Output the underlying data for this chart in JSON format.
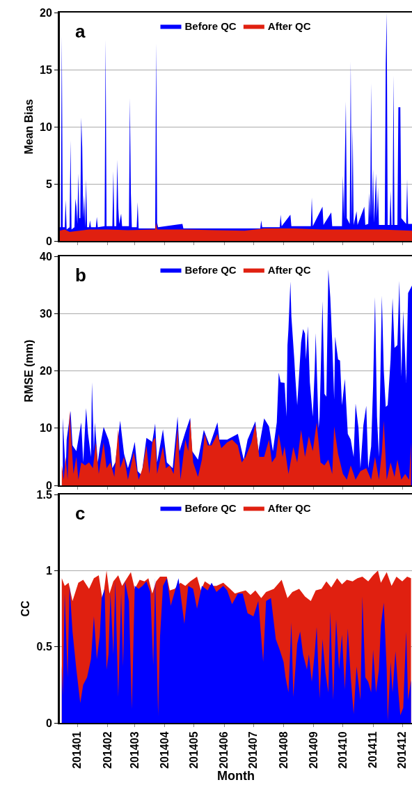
{
  "chart_data": [
    {
      "type": "area",
      "annotations": [
        "a"
      ],
      "ylabel": "Mean Bias",
      "xlim": [
        "2013-12-14",
        "2014-12-11"
      ],
      "ylim": [
        0,
        20
      ],
      "yticks": [
        0,
        5,
        10,
        15,
        20
      ],
      "grid": "y",
      "legend": "top",
      "tick_labels": "y",
      "xticks": [
        {
          "value": "2014-01",
          "label": null
        },
        {
          "value": "2014-02",
          "label": null
        },
        {
          "value": "2014-03",
          "label": null
        },
        {
          "value": "2014-04",
          "label": null
        },
        {
          "value": "2014-05",
          "label": null
        },
        {
          "value": "2014-06",
          "label": null
        },
        {
          "value": "2014-07",
          "label": null
        },
        {
          "value": "2014-08",
          "label": null
        },
        {
          "value": "2014-09",
          "label": null
        },
        {
          "value": "2014-10",
          "label": null
        },
        {
          "value": "2014-11",
          "label": null
        },
        {
          "value": "2014-12",
          "label": null
        }
      ],
      "series": [
        {
          "name": "Before QC",
          "color": "#0000ff",
          "x": [
            "2013-12-14",
            "2013-12-15",
            "2013-12-16",
            "2013-12-17",
            "2013-12-19",
            "2013-12-20",
            "2013-12-21",
            "2013-12-24",
            "2013-12-25",
            "2013-12-26",
            "2013-12-29",
            "2013-12-30",
            "2013-12-31",
            "2014-01-01",
            "2014-01-02",
            "2014-01-03",
            "2014-01-04",
            "2014-01-05",
            "2014-01-06",
            "2014-01-07",
            "2014-01-08",
            "2014-01-09",
            "2014-01-10",
            "2014-01-11",
            "2014-01-13",
            "2014-01-14",
            "2014-01-15",
            "2014-01-20",
            "2014-01-21",
            "2014-01-22",
            "2014-01-29",
            "2014-01-30",
            "2014-01-31",
            "2014-02-06",
            "2014-02-07",
            "2014-02-08",
            "2014-02-10",
            "2014-02-11",
            "2014-02-12",
            "2014-02-13",
            "2014-02-15",
            "2014-02-16",
            "2014-02-23",
            "2014-02-24",
            "2014-02-25",
            "2014-02-26",
            "2014-03-03",
            "2014-03-04",
            "2014-03-05",
            "2014-03-22",
            "2014-03-23",
            "2014-03-24",
            "2014-03-25",
            "2014-04-19",
            "2014-04-20",
            "2014-07-08",
            "2014-07-09",
            "2014-07-10",
            "2014-07-28",
            "2014-07-29",
            "2014-07-30",
            "2014-08-08",
            "2014-08-09",
            "2014-08-29",
            "2014-08-30",
            "2014-08-31",
            "2014-09-10",
            "2014-09-11",
            "2014-09-19",
            "2014-09-20",
            "2014-09-30",
            "2014-10-01",
            "2014-10-02",
            "2014-10-04",
            "2014-10-05",
            "2014-10-08",
            "2014-10-09",
            "2014-10-10",
            "2014-10-11",
            "2014-10-12",
            "2014-10-15",
            "2014-10-16",
            "2014-10-23",
            "2014-10-24",
            "2014-10-27",
            "2014-10-28",
            "2014-10-29",
            "2014-10-30",
            "2014-10-31",
            "2014-11-01",
            "2014-11-02",
            "2014-11-04",
            "2014-11-05",
            "2014-11-06",
            "2014-11-07",
            "2014-11-13",
            "2014-11-14",
            "2014-11-15",
            "2014-11-16",
            "2014-11-18",
            "2014-11-19",
            "2014-11-20",
            "2014-11-21",
            "2014-11-22",
            "2014-11-23",
            "2014-11-26",
            "2014-11-27",
            "2014-11-29",
            "2014-11-30",
            "2014-12-05",
            "2014-12-06",
            "2014-12-07",
            "2014-12-11"
          ],
          "values": [
            1.2,
            1.2,
            17.9,
            1.2,
            1.2,
            3.6,
            1.0,
            1.2,
            8.8,
            1.0,
            1.2,
            3.7,
            3.0,
            1.5,
            5.9,
            2,
            2,
            10.8,
            8.2,
            2,
            4,
            1.2,
            5.4,
            1.2,
            1.2,
            1.8,
            1.2,
            1.2,
            2.1,
            1.2,
            1.3,
            17.6,
            1.3,
            1.3,
            6.1,
            1.3,
            1.3,
            7.1,
            3,
            1.5,
            2.4,
            1.3,
            1.3,
            12.5,
            4.2,
            1.2,
            1.2,
            3.4,
            1.1,
            1.1,
            17.3,
            1.6,
            1.2,
            1.5,
            1.1,
            1.1,
            1.8,
            1.2,
            1.2,
            2.3,
            1.3,
            2.3,
            1.3,
            1.3,
            3.8,
            1.3,
            3,
            1.4,
            2.5,
            1.3,
            1.3,
            5.7,
            2,
            12.2,
            2,
            1.5,
            15.7,
            1.5,
            10,
            1.4,
            2.6,
            1.4,
            3,
            1.4,
            1.5,
            4.2,
            2,
            13.8,
            2,
            6.3,
            1.6,
            5.9,
            2,
            4.7,
            1.4,
            1.4,
            15.5,
            20,
            1.4,
            1.4,
            4.4,
            1.4,
            1.4,
            14.5,
            1.4,
            1.4,
            11.7,
            11.7,
            2,
            1.5,
            5.4,
            1.5,
            1.5
          ]
        },
        {
          "name": "After QC",
          "color": "#e02010",
          "x": [
            "2013-12-14",
            "2013-12-19",
            "2013-12-24",
            "2014-01-03",
            "2014-01-13",
            "2014-02-02",
            "2014-02-22",
            "2014-03-22",
            "2014-03-23",
            "2014-03-24",
            "2014-04-23",
            "2014-05-23",
            "2014-06-22",
            "2014-07-12",
            "2014-08-11",
            "2014-09-10",
            "2014-10-10",
            "2014-11-09",
            "2014-12-11"
          ],
          "values": [
            0.9,
            1.0,
            0.8,
            0.9,
            1.0,
            1.0,
            0.95,
            1.0,
            1.6,
            1.0,
            1.0,
            0.95,
            0.9,
            1.1,
            1.1,
            1.0,
            1.0,
            1.0,
            0.9
          ]
        }
      ]
    },
    {
      "type": "area",
      "annotations": [
        "b"
      ],
      "ylabel": "RMSE (mm)",
      "xlim": [
        "2013-12-14",
        "2014-12-11"
      ],
      "ylim": [
        0,
        40
      ],
      "yticks": [
        0,
        10,
        20,
        30,
        40
      ],
      "grid": "y",
      "legend": "top",
      "tick_labels": "y",
      "xticks": [
        {
          "value": "2014-01",
          "label": null
        },
        {
          "value": "2014-02",
          "label": null
        },
        {
          "value": "2014-03",
          "label": null
        },
        {
          "value": "2014-04",
          "label": null
        },
        {
          "value": "2014-05",
          "label": null
        },
        {
          "value": "2014-06",
          "label": null
        },
        {
          "value": "2014-07",
          "label": null
        },
        {
          "value": "2014-08",
          "label": null
        },
        {
          "value": "2014-09",
          "label": null
        },
        {
          "value": "2014-10",
          "label": null
        },
        {
          "value": "2014-11",
          "label": null
        },
        {
          "value": "2014-12",
          "label": null
        }
      ],
      "series": [
        {
          "name": "Before QC",
          "color": "#0000ff",
          "x": [
            "2013-12-17",
            "2013-12-20",
            "2013-12-21",
            "2013-12-23",
            "2013-12-25",
            "2013-12-27",
            "2013-12-29",
            "2013-12-31",
            "2014-01-03",
            "2014-01-05",
            "2014-01-07",
            "2014-01-10",
            "2014-01-12",
            "2014-01-15",
            "2014-01-16",
            "2014-01-18",
            "2014-01-19",
            "2014-01-22",
            "2014-01-24",
            "2014-01-28",
            "2014-01-31",
            "2014-02-02",
            "2014-02-04",
            "2014-02-06",
            "2014-02-09",
            "2014-02-14",
            "2014-02-16",
            "2014-02-18",
            "2014-02-22",
            "2014-02-25",
            "2014-03-01",
            "2014-03-04",
            "2014-03-08",
            "2014-03-13",
            "2014-03-15",
            "2014-03-19",
            "2014-03-22",
            "2014-03-24",
            "2014-03-30",
            "2014-04-01",
            "2014-04-03",
            "2014-04-09",
            "2014-04-14",
            "2014-04-16",
            "2014-04-18",
            "2014-04-22",
            "2014-04-27",
            "2014-04-29",
            "2014-05-05",
            "2014-05-11",
            "2014-05-17",
            "2014-05-25",
            "2014-05-27",
            "2014-06-04",
            "2014-06-15",
            "2014-06-21",
            "2014-06-25",
            "2014-07-03",
            "2014-07-06",
            "2014-07-12",
            "2014-07-17",
            "2014-07-21",
            "2014-07-25",
            "2014-07-27",
            "2014-07-29",
            "2014-08-02",
            "2014-08-04",
            "2014-08-05",
            "2014-08-06",
            "2014-08-08",
            "2014-08-09",
            "2014-08-12",
            "2014-08-13",
            "2014-08-15",
            "2014-08-19",
            "2014-08-21",
            "2014-08-23",
            "2014-08-24",
            "2014-08-26",
            "2014-08-28",
            "2014-08-31",
            "2014-09-02",
            "2014-09-03",
            "2014-09-06",
            "2014-09-07",
            "2014-09-10",
            "2014-09-12",
            "2014-09-14",
            "2014-09-16",
            "2014-09-18",
            "2014-09-20",
            "2014-09-22",
            "2014-09-23",
            "2014-09-26",
            "2014-09-28",
            "2014-09-30",
            "2014-10-03",
            "2014-10-06",
            "2014-10-09",
            "2014-10-12",
            "2014-10-14",
            "2014-10-17",
            "2014-10-19",
            "2014-10-22",
            "2014-10-25",
            "2014-10-27",
            "2014-10-30",
            "2014-11-01",
            "2014-11-03",
            "2014-11-05",
            "2014-11-07",
            "2014-11-10",
            "2014-11-12",
            "2014-11-14",
            "2014-11-16",
            "2014-11-19",
            "2014-11-21",
            "2014-11-23",
            "2014-11-26",
            "2014-11-28",
            "2014-11-30",
            "2014-12-02",
            "2014-12-05",
            "2014-12-07",
            "2014-12-11"
          ],
          "values": [
            11.8,
            2,
            8,
            null,
            13,
            7,
            null,
            6,
            null,
            11,
            4,
            13.5,
            9,
            5,
            18,
            6,
            11,
            4,
            6.5,
            10.2,
            null,
            8,
            6.5,
            3,
            4,
            11.3,
            null,
            5.5,
            3,
            4.7,
            7.6,
            2.5,
            1.8,
            8.3,
            null,
            7.6,
            10.8,
            4,
            9.8,
            null,
            4,
            3,
            12,
            6,
            null,
            9.3,
            11.8,
            6,
            4.5,
            9.7,
            7,
            11,
            8,
            8,
            9,
            4.5,
            8,
            11.2,
            6,
            11.7,
            10.3,
            6,
            11,
            19.7,
            18,
            17.9,
            12,
            24.5,
            27.3,
            35.6,
            29.5,
            22,
            19,
            14,
            25,
            27.3,
            26.5,
            22,
            27.8,
            18,
            12,
            20.3,
            26.6,
            10,
            12,
            32.2,
            16,
            15.5,
            37.7,
            32.8,
            25,
            15,
            26,
            22,
            21.8,
            14,
            18.6,
            9,
            8,
            5,
            14.3,
            10,
            3,
            10.5,
            13.9,
            3,
            6.8,
            17.3,
            32.9,
            12,
            5,
            33.1,
            20,
            13.7,
            14,
            22,
            32.7,
            24,
            24.5,
            35.7,
            19,
            30.5,
            18,
            33.6,
            34.9
          ]
        },
        {
          "name": "After QC",
          "color": "#e02010",
          "x": [
            "2013-12-16",
            "2013-12-18",
            "2013-12-20",
            "2013-12-22",
            "2013-12-24",
            "2013-12-26",
            "2013-12-28",
            "2013-12-31",
            "2014-01-02",
            "2014-01-05",
            "2014-01-09",
            "2014-01-13",
            "2014-01-17",
            "2014-01-20",
            "2014-01-23",
            "2014-01-28",
            "2014-01-31",
            "2014-02-04",
            "2014-02-08",
            "2014-02-12",
            "2014-02-14",
            "2014-02-18",
            "2014-02-22",
            "2014-02-28",
            "2014-03-05",
            "2014-03-09",
            "2014-03-13",
            "2014-03-16",
            "2014-03-19",
            "2014-03-22",
            "2014-03-24",
            "2014-03-30",
            "2014-04-02",
            "2014-04-06",
            "2014-04-10",
            "2014-04-14",
            "2014-04-17",
            "2014-04-22",
            "2014-04-25",
            "2014-04-27",
            "2014-04-30",
            "2014-05-05",
            "2014-05-09",
            "2014-05-12",
            "2014-05-15",
            "2014-05-19",
            "2014-05-25",
            "2014-05-29",
            "2014-06-04",
            "2014-06-09",
            "2014-06-15",
            "2014-06-19",
            "2014-06-23",
            "2014-06-29",
            "2014-07-03",
            "2014-07-07",
            "2014-07-12",
            "2014-07-17",
            "2014-07-20",
            "2014-07-24",
            "2014-07-27",
            "2014-07-31",
            "2014-08-02",
            "2014-08-06",
            "2014-08-11",
            "2014-08-15",
            "2014-08-19",
            "2014-08-23",
            "2014-08-27",
            "2014-08-31",
            "2014-09-04",
            "2014-09-08",
            "2014-09-12",
            "2014-09-16",
            "2014-09-20",
            "2014-09-22",
            "2014-09-26",
            "2014-10-01",
            "2014-10-05",
            "2014-10-09",
            "2014-10-14",
            "2014-10-19",
            "2014-10-25",
            "2014-10-30",
            "2014-11-03",
            "2014-11-07",
            "2014-11-10",
            "2014-11-12",
            "2014-11-15",
            "2014-11-19",
            "2014-11-23",
            "2014-11-26",
            "2014-11-30",
            "2014-12-04",
            "2014-12-08",
            "2014-12-10"
          ],
          "values": [
            3.5,
            1,
            5,
            1,
            13,
            7.5,
            2,
            5,
            1,
            4,
            3.5,
            4,
            3,
            7.5,
            2,
            7.5,
            3,
            4,
            1.5,
            9.8,
            3,
            5,
            1,
            5.8,
            1,
            3,
            7,
            2,
            7.5,
            8.4,
            2,
            6.8,
            3,
            3.5,
            2,
            10,
            1,
            8,
            6,
            11.5,
            4,
            1.5,
            4.5,
            9,
            7,
            7,
            9,
            6.5,
            7.5,
            8,
            7,
            4,
            5,
            7.5,
            10.6,
            5,
            5,
            8,
            4,
            5,
            9,
            5,
            6.8,
            2,
            6.7,
            4,
            9.7,
            5,
            8.6,
            6,
            11,
            4,
            3.5,
            4.5,
            2,
            10.3,
            5.5,
            2,
            1,
            3.5,
            1,
            2.5,
            3,
            1,
            5,
            1,
            5.8,
            11.3,
            1,
            4,
            1.5,
            4.5,
            1,
            2,
            1,
            7.5
          ]
        }
      ]
    },
    {
      "type": "area",
      "annotations": [
        "c"
      ],
      "ylabel": "CC",
      "xlabel": "Month",
      "xlim": [
        "2013-12-14",
        "2014-12-11"
      ],
      "ylim": [
        0,
        1.5
      ],
      "yticks": [
        0,
        0.5,
        1,
        1.5
      ],
      "grid": "y",
      "legend": "top",
      "xticks": [
        {
          "value": "2014-01",
          "label": "201401"
        },
        {
          "value": "2014-02",
          "label": "201402"
        },
        {
          "value": "2014-03",
          "label": "201403"
        },
        {
          "value": "2014-04",
          "label": "201404"
        },
        {
          "value": "2014-05",
          "label": "201405"
        },
        {
          "value": "2014-06",
          "label": "201406"
        },
        {
          "value": "2014-07",
          "label": "201407"
        },
        {
          "value": "2014-08",
          "label": "201408"
        },
        {
          "value": "2014-09",
          "label": "201409"
        },
        {
          "value": "2014-10",
          "label": "201410"
        },
        {
          "value": "2014-11",
          "label": "201411"
        },
        {
          "value": "2014-12",
          "label": "201412"
        }
      ],
      "series": [
        {
          "name": "Before QC",
          "color": "#0000ff",
          "x": [
            "2013-12-16",
            "2013-12-17",
            "2013-12-19",
            "2013-12-22",
            "2013-12-24",
            "2013-12-27",
            "2013-12-31",
            "2014-01-04",
            "2014-01-07",
            "2014-01-11",
            "2014-01-15",
            "2014-01-18",
            "2014-01-21",
            "2014-01-24",
            "2014-01-26",
            "2014-01-29",
            "2014-01-31",
            "2014-02-02",
            "2014-02-04",
            "2014-02-07",
            "2014-02-09",
            "2014-02-12",
            "2014-02-15",
            "2014-02-17",
            "2014-02-19",
            "2014-02-23",
            "2014-02-26",
            "2014-03-01",
            "2014-03-05",
            "2014-03-09",
            "2014-03-13",
            "2014-03-17",
            "2014-03-20",
            "2014-03-22",
            "2014-03-25",
            "2014-03-27",
            "2014-03-30",
            "2014-04-03",
            "2014-04-07",
            "2014-04-11",
            "2014-04-15",
            "2014-04-21",
            "2014-04-25",
            "2014-04-30",
            "2014-05-04",
            "2014-05-09",
            "2014-05-15",
            "2014-05-19",
            "2014-05-24",
            "2014-05-31",
            "2014-06-04",
            "2014-06-09",
            "2014-06-15",
            "2014-06-20",
            "2014-06-25",
            "2014-07-01",
            "2014-07-06",
            "2014-07-11",
            "2014-07-14",
            "2014-07-19",
            "2014-07-24",
            "2014-07-28",
            "2014-08-01",
            "2014-08-03",
            "2014-08-06",
            "2014-08-09",
            "2014-08-11",
            "2014-08-15",
            "2014-08-18",
            "2014-08-21",
            "2014-08-25",
            "2014-08-27",
            "2014-08-30",
            "2014-09-02",
            "2014-09-04",
            "2014-09-07",
            "2014-09-10",
            "2014-09-13",
            "2014-09-16",
            "2014-09-18",
            "2014-09-21",
            "2014-09-24",
            "2014-09-27",
            "2014-09-30",
            "2014-10-03",
            "2014-10-06",
            "2014-10-09",
            "2014-10-12",
            "2014-10-15",
            "2014-10-19",
            "2014-10-21",
            "2014-10-24",
            "2014-10-27",
            "2014-10-30",
            "2014-11-01",
            "2014-11-04",
            "2014-11-07",
            "2014-11-09",
            "2014-11-12",
            "2014-11-15",
            "2014-11-16",
            "2014-11-19",
            "2014-11-21",
            "2014-11-24",
            "2014-11-27",
            "2014-11-29",
            "2014-12-02",
            "2014-12-05",
            "2014-12-07",
            "2014-12-10"
          ],
          "values": [
            0.38,
            0.18,
            0.85,
            0.3,
            0.9,
            0.6,
            0.35,
            0.13,
            0.25,
            0.3,
            0.42,
            0.7,
            0.42,
            0.57,
            0.82,
            0.88,
            0.35,
            0.45,
            0.85,
            0.45,
            0.93,
            0.17,
            0.85,
            0.37,
            0.93,
            0.8,
            0.09,
            0.9,
            0.88,
            0.9,
            0.93,
            0.86,
            0.38,
            0.95,
            0.05,
            0.57,
            0.9,
            0.95,
            0.77,
            0.86,
            0.95,
            0.65,
            0.9,
            0.88,
            0.75,
            0.9,
            0.87,
            0.92,
            0.86,
            0.9,
            0.87,
            0.78,
            0.85,
            0.85,
            0.72,
            0.7,
            0.8,
            0.4,
            0.8,
            0.82,
            0.55,
            0.48,
            0.4,
            0.3,
            0.2,
            0.66,
            0.17,
            0.52,
            0.6,
            0.45,
            0.35,
            0.45,
            0.27,
            0.46,
            0.63,
            0.16,
            0.55,
            0.33,
            0.2,
            0.73,
            0.15,
            0.68,
            0.35,
            0.58,
            0.22,
            0.62,
            0.3,
            0.06,
            0.37,
            0.15,
            0.83,
            0.3,
            0.27,
            0.2,
            0.48,
            0.2,
            0.35,
            0.64,
            0.79,
            0.35,
            0.01,
            0.4,
            0.2,
            0.47,
            0.2,
            0.05,
            0.1,
            0.6,
            0.15,
            0.28
          ]
        },
        {
          "name": "After QC",
          "color": "#e02010",
          "x": [
            "2013-12-16",
            "2013-12-19",
            "2013-12-23",
            "2013-12-27",
            "2014-01-02",
            "2014-01-07",
            "2014-01-13",
            "2014-01-18",
            "2014-01-23",
            "2014-01-27",
            "2014-01-31",
            "2014-02-03",
            "2014-02-07",
            "2014-02-12",
            "2014-02-16",
            "2014-02-21",
            "2014-02-25",
            "2014-03-01",
            "2014-03-06",
            "2014-03-11",
            "2014-03-15",
            "2014-03-19",
            "2014-03-23",
            "2014-03-27",
            "2014-04-03",
            "2014-04-06",
            "2014-04-11",
            "2014-04-17",
            "2014-04-22",
            "2014-04-27",
            "2014-05-04",
            "2014-05-08",
            "2014-05-12",
            "2014-05-19",
            "2014-05-24",
            "2014-05-31",
            "2014-06-07",
            "2014-06-12",
            "2014-06-17",
            "2014-06-23",
            "2014-06-28",
            "2014-07-03",
            "2014-07-09",
            "2014-07-14",
            "2014-07-22",
            "2014-07-30",
            "2014-08-05",
            "2014-08-10",
            "2014-08-17",
            "2014-08-23",
            "2014-08-29",
            "2014-09-03",
            "2014-09-09",
            "2014-09-14",
            "2014-09-19",
            "2014-09-25",
            "2014-09-30",
            "2014-10-05",
            "2014-10-11",
            "2014-10-16",
            "2014-10-21",
            "2014-10-27",
            "2014-11-01",
            "2014-11-06",
            "2014-11-09",
            "2014-11-15",
            "2014-11-20",
            "2014-11-25",
            "2014-12-01",
            "2014-12-06",
            "2014-12-10"
          ],
          "values": [
            0.95,
            0.9,
            0.92,
            0.8,
            0.92,
            0.94,
            0.88,
            0.95,
            0.97,
            0.8,
            1.0,
            0.85,
            0.93,
            0.97,
            0.9,
            0.95,
            0.99,
            0.88,
            0.94,
            0.93,
            0.95,
            0.85,
            0.93,
            0.96,
            0.96,
            0.87,
            0.88,
            0.92,
            0.9,
            0.93,
            0.96,
            0.87,
            0.93,
            0.9,
            0.9,
            0.92,
            0.88,
            0.85,
            0.86,
            0.87,
            0.84,
            0.87,
            0.82,
            0.86,
            0.88,
            0.94,
            0.82,
            0.86,
            0.88,
            0.83,
            0.8,
            0.87,
            0.88,
            0.93,
            0.89,
            0.95,
            0.91,
            0.94,
            0.93,
            0.95,
            0.96,
            0.93,
            0.97,
            1.0,
            0.92,
            0.99,
            0.9,
            0.96,
            0.93,
            0.96,
            0.95
          ]
        }
      ]
    }
  ]
}
